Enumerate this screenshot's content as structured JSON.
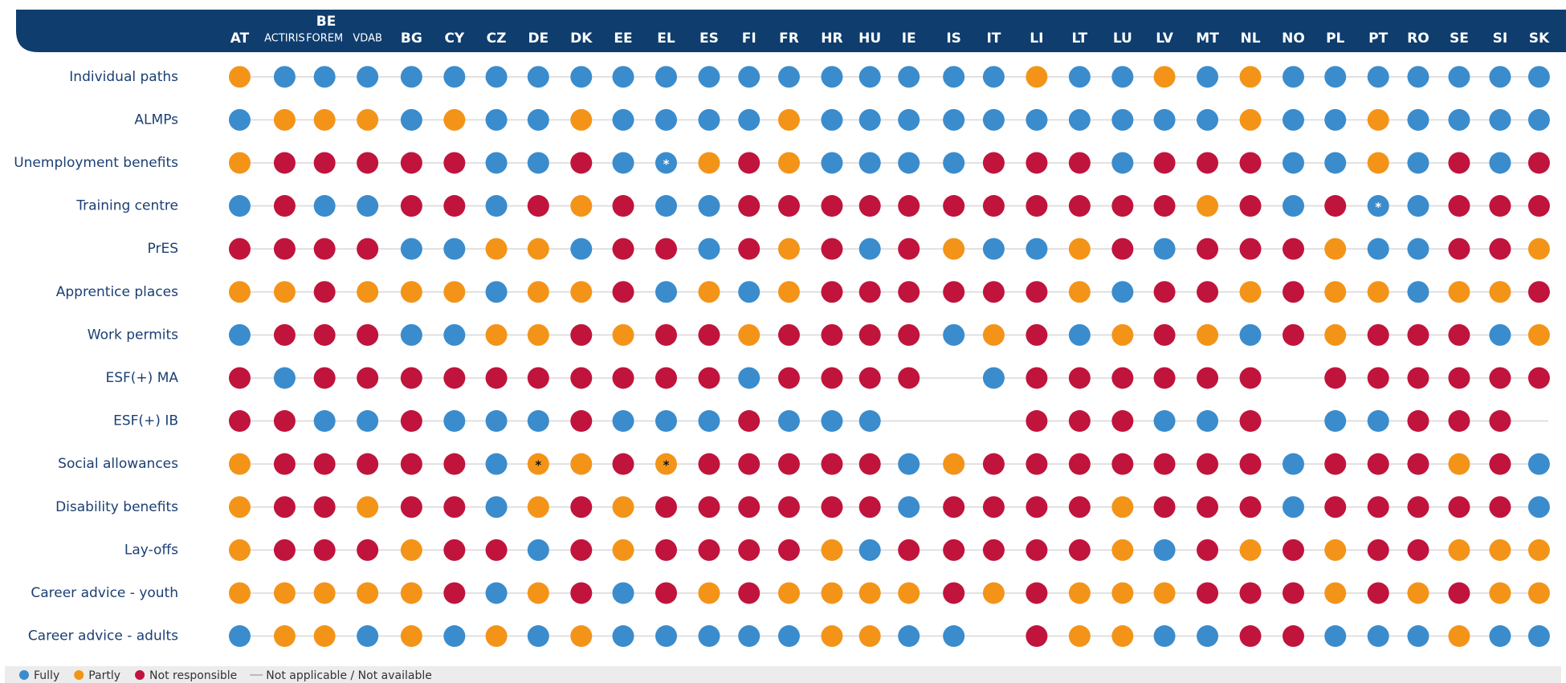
{
  "columns": [
    {
      "code": "AT"
    },
    {
      "group": "BE",
      "code": "ACTIRIS"
    },
    {
      "group": "BE",
      "code": "FOREM"
    },
    {
      "group": "BE",
      "code": "VDAB"
    },
    {
      "code": "BG"
    },
    {
      "code": "CY"
    },
    {
      "code": "CZ"
    },
    {
      "code": "DE"
    },
    {
      "code": "DK"
    },
    {
      "code": "EE"
    },
    {
      "code": "EL"
    },
    {
      "code": "ES"
    },
    {
      "code": "FI"
    },
    {
      "code": "FR"
    },
    {
      "code": "HR"
    },
    {
      "code": "HU"
    },
    {
      "code": "IE"
    },
    {
      "code": "IS"
    },
    {
      "code": "IT"
    },
    {
      "code": "LI"
    },
    {
      "code": "LT"
    },
    {
      "code": "LU"
    },
    {
      "code": "LV"
    },
    {
      "code": "MT"
    },
    {
      "code": "NL"
    },
    {
      "code": "NO"
    },
    {
      "code": "PL"
    },
    {
      "code": "PT"
    },
    {
      "code": "RO"
    },
    {
      "code": "SE"
    },
    {
      "code": "SI"
    },
    {
      "code": "SK"
    }
  ],
  "legend": [
    {
      "key": "F",
      "label": "Fully",
      "color": "#3a8ccd"
    },
    {
      "key": "P",
      "label": "Partly",
      "color": "#f39419"
    },
    {
      "key": "N",
      "label": "Not responsible",
      "color": "#c0143c"
    },
    {
      "key": "-",
      "label": "Not applicable / Not available"
    }
  ],
  "rows": [
    {
      "label": "Individual paths",
      "cells": "PFFFFFFFFFFFFFFFFFFPFFPFPFFFFFFF"
    },
    {
      "label": "ALMPs",
      "cells": "FPPPFPFFPFFFFPFFFFFFFFFFPFFPFFFF"
    },
    {
      "label": "Unemployment benefits",
      "cells": "PNNNNNFFNFFPNPFFFFNNNFNNNFFPFNFN",
      "notes": [
        {
          "col": 10,
          "text": "*"
        }
      ]
    },
    {
      "label": "Training centre",
      "cells": "FNFFNNFNPNFFNNNNNNNNNNNPNFNFFNNN",
      "notes": [
        {
          "col": 27,
          "text": "*"
        }
      ]
    },
    {
      "label": "PrES",
      "cells": "NNNNFFPPFNNFNPNFNPFFPNFNNNPFFNNP"
    },
    {
      "label": "Apprentice places",
      "cells": "PPNPPPFPPNFPFPNNNNNNPFNNPNPPFPPN"
    },
    {
      "label": "Work permits",
      "cells": "FNNNFFPPNPNNPNNNNFPNFPNPFNPNNNFP"
    },
    {
      "label": "ESF(+) MA",
      "cells": "NFNNNNNNNNNNFNNNN-FNNNNNN-NNNNNN"
    },
    {
      "label": "ESF(+) IB",
      "cells": "NNFFNFFFNFFFNFFF---NNNFFN-FFNNN-"
    },
    {
      "label": "Social allowances",
      "cells": "PNNNNNFPPNPNNNNNFPNNNNNNNFNNNPNF",
      "notes": [
        {
          "col": 7,
          "text": "*"
        },
        {
          "col": 10,
          "text": "*"
        }
      ]
    },
    {
      "label": "Disability benefits",
      "cells": "PNNPNNFPNPNNNNNNFNNNNPNNNFNNNNNF"
    },
    {
      "label": "Lay-offs",
      "cells": "PNNNPNNFNPNNNNPFNNNNNPFNPNPNNPPP"
    },
    {
      "label": "Career advice - youth",
      "cells": "PPPPPNFPNFNPNPPPPNPNPPPNNNPNPNPP"
    },
    {
      "label": "Career advice - adults",
      "cells": "FPPFPFPFPFFFFFPPFF-NPPFFNNFFFPFF"
    }
  ]
}
